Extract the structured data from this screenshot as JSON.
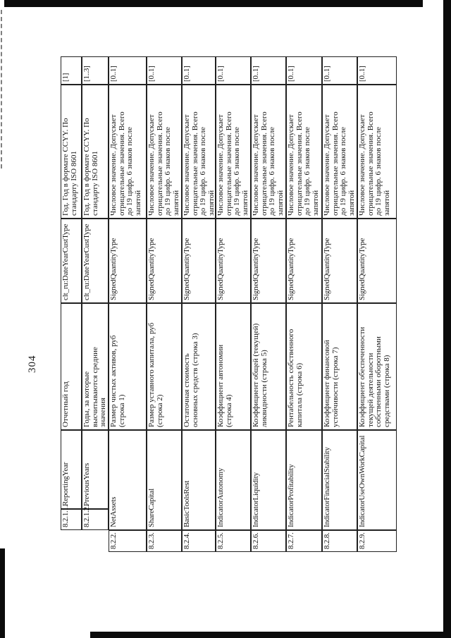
{
  "page": {
    "number": "304"
  },
  "table": {
    "rows": [
      {
        "code": "8.2.1.1.",
        "identifier": "ReportingYear",
        "name": "Отчетный год",
        "type": "clt_ru:DateYearCustType",
        "description": "Год. Год в формате CCYY. По\nстандарту ISO 8601",
        "cardinality": "[1]"
      },
      {
        "code": "8.2.1.2.",
        "identifier": "PreviousYears",
        "name": "Годы, за которые\nвысчитываются средние\nзначения",
        "type": "clt_ru:DateYearCustType",
        "description": "Год. Год в формате CCYY. По\nстандарту ISO 8601",
        "cardinality": "[1..3]"
      },
      {
        "code": "8.2.2.",
        "identifier": "NetAssets",
        "name": "Размер чистых активов, руб\n(строка 1)",
        "type": "SignedQuantityType",
        "description": "Числовое значение. Допускает\nотрицательные значения. Всего\nдо 19 цифр. 6 знаков после\nзапятой",
        "cardinality": "[0..1]"
      },
      {
        "code": "8.2.3.",
        "identifier": "ShareCapital",
        "name": "Размер уставного капитала, руб\n(строка 2)",
        "type": "SignedQuantityType",
        "description": "Числовое значение. Допускает\nотрицательные значения. Всего\nдо 19 цифр. 6 знаков после\nзапятой",
        "cardinality": "[0..1]"
      },
      {
        "code": "8.2.4.",
        "identifier": "BasicToolsRest",
        "name": "Остаточная стоимость\nосновных средств (строка 3)",
        "type": "SignedQuantityType",
        "description": "Числовое значение. Допускает\nотрицательные значения. Всего\nдо 19 цифр. 6 знаков после\nзапятой",
        "cardinality": "[0..1]"
      },
      {
        "code": "8.2.5.",
        "identifier": "IndicatorAutonomy",
        "name": "Коэффициент автономии\n(строка 4)",
        "type": "SignedQuantityType",
        "description": "Числовое значение. Допускает\nотрицательные значения. Всего\nдо 19 цифр. 6 знаков после\nзапятой",
        "cardinality": "[0..1]"
      },
      {
        "code": "8.2.6.",
        "identifier": "IndicatorLiquidity",
        "name": "Коэффициент общей (текущей)\nликвидности (строка 5)",
        "type": "SignedQuantityType",
        "description": "Числовое значение. Допускает\nотрицательные значения. Всего\nдо 19 цифр. 6 знаков после\nзапятой",
        "cardinality": "[0..1]"
      },
      {
        "code": "8.2.7.",
        "identifier": "IndicatorProfitability",
        "name": "Рентабельность собственного\nкапитала (строка 6)",
        "type": "SignedQuantityType",
        "description": "Числовое значение. Допускает\nотрицательные значения. Всего\nдо 19 цифр. 6 знаков после\nзапятой",
        "cardinality": "[0..1]"
      },
      {
        "code": "8.2.8.",
        "identifier": "IndicatorFinancialStability",
        "name": "Коэффициент финансовой\nустойчивости (строка 7)",
        "type": "SignedQuantityType",
        "description": "Числовое значение. Допускает\nотрицательные значения. Всего\nдо 19 цифр. 6 знаков после\nзапятой",
        "cardinality": "[0..1]"
      },
      {
        "code": "8.2.9.",
        "identifier": "IndicatorUseOwnWorkCapital",
        "name": "Коэффициент обеспеченности\nтекущей деятельности\nсобственными оборотными\nсредствами (строка 8)",
        "type": "SignedQuantityType",
        "description": "Числовое значение. Допускает\nотрицательные значения. Всего\nдо 19 цифр. 6 знаков после\nзапятой",
        "cardinality": "[0..1]"
      }
    ]
  }
}
